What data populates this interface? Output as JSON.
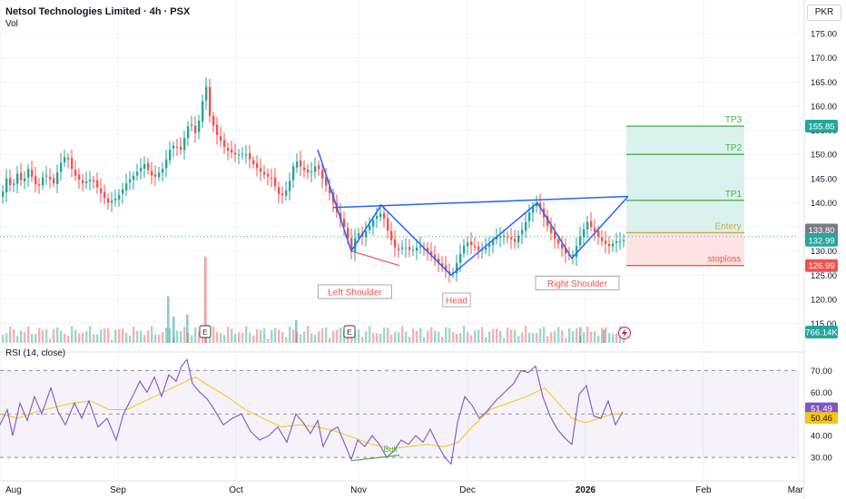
{
  "header": {
    "symbol_title": "Netsol Technologies Limited · 4h · PSX",
    "volume_label": "Vol",
    "rsi_label": "RSI (14, close)",
    "currency": "PKR"
  },
  "colors": {
    "up": "#26a69a",
    "down": "#ef5350",
    "pattern_line": "#2962ff",
    "rsi": "#7e57c2",
    "rsi_ma": "#f5c518",
    "target_zone": "#d4f0ea",
    "stop_zone": "#fde0e0",
    "target_line": "#4caf50",
    "stop_line": "#ef5350",
    "entry_line": "#c8a850"
  },
  "chart_data": [
    {
      "type": "candlestick",
      "title": "Netsol Technologies Limited · 4h · PSX",
      "x_ticks": [
        "Aug",
        "Sep",
        "Oct",
        "Nov",
        "Dec",
        "2026",
        "Feb",
        "Mar"
      ],
      "y_ticks": [
        175,
        170,
        165,
        160,
        155,
        150,
        145,
        140,
        135,
        130,
        125,
        120,
        115
      ],
      "ylim": [
        110.6,
        178.2
      ],
      "price_path": [
        [
          0,
          141
        ],
        [
          6,
          145
        ],
        [
          12,
          143
        ],
        [
          18,
          146
        ],
        [
          24,
          144
        ],
        [
          30,
          147
        ],
        [
          40,
          143
        ],
        [
          48,
          146
        ],
        [
          58,
          144
        ],
        [
          65,
          148
        ],
        [
          72,
          150
        ],
        [
          80,
          146
        ],
        [
          90,
          144
        ],
        [
          100,
          145
        ],
        [
          110,
          142
        ],
        [
          118,
          140
        ],
        [
          128,
          141
        ],
        [
          138,
          144
        ],
        [
          148,
          146
        ],
        [
          158,
          148
        ],
        [
          168,
          145
        ],
        [
          178,
          147
        ],
        [
          188,
          152
        ],
        [
          198,
          151
        ],
        [
          208,
          157
        ],
        [
          215,
          154
        ],
        [
          222,
          161
        ],
        [
          226,
          164
        ],
        [
          230,
          158
        ],
        [
          238,
          154
        ],
        [
          248,
          151
        ],
        [
          258,
          150
        ],
        [
          270,
          150
        ],
        [
          278,
          148
        ],
        [
          288,
          146
        ],
        [
          298,
          145
        ],
        [
          308,
          141
        ],
        [
          316,
          143
        ],
        [
          324,
          149
        ],
        [
          332,
          147
        ],
        [
          340,
          146
        ],
        [
          348,
          148
        ],
        [
          354,
          145
        ],
        [
          362,
          142
        ],
        [
          370,
          138
        ],
        [
          378,
          135
        ],
        [
          386,
          130
        ],
        [
          392,
          134
        ],
        [
          398,
          133
        ],
        [
          405,
          135
        ],
        [
          412,
          137
        ],
        [
          420,
          138
        ],
        [
          428,
          133
        ],
        [
          436,
          130
        ],
        [
          444,
          131
        ],
        [
          452,
          130
        ],
        [
          460,
          131
        ],
        [
          470,
          130
        ],
        [
          480,
          128
        ],
        [
          490,
          126
        ],
        [
          497,
          125
        ],
        [
          505,
          129
        ],
        [
          512,
          132
        ],
        [
          520,
          131
        ],
        [
          528,
          130
        ],
        [
          536,
          131
        ],
        [
          546,
          133
        ],
        [
          556,
          133
        ],
        [
          566,
          132
        ],
        [
          576,
          135
        ],
        [
          584,
          139
        ],
        [
          592,
          140
        ],
        [
          600,
          136
        ],
        [
          608,
          133
        ],
        [
          616,
          131
        ],
        [
          624,
          129
        ],
        [
          630,
          129
        ],
        [
          638,
          133
        ],
        [
          646,
          136
        ],
        [
          654,
          134
        ],
        [
          662,
          132
        ],
        [
          670,
          131
        ],
        [
          678,
          132
        ],
        [
          688,
          132
        ]
      ],
      "volume_spikes": [
        {
          "x": 225,
          "value_k": 1700,
          "dir": "down"
        },
        {
          "x": 184,
          "value_k": 920,
          "dir": "up"
        },
        {
          "x": 190,
          "value_k": 520,
          "dir": "up"
        },
        {
          "x": 205,
          "value_k": 560,
          "dir": "up"
        },
        {
          "x": 325,
          "value_k": 450,
          "dir": "up"
        },
        {
          "x": 638,
          "value_k": 310,
          "dir": "up"
        },
        {
          "x": 664,
          "value_k": 260,
          "dir": "up"
        }
      ],
      "pattern_points": [
        {
          "x": 350,
          "y": 151
        },
        {
          "x": 387,
          "y": 130
        },
        {
          "x": 420,
          "y": 139.5
        },
        {
          "x": 497,
          "y": 125
        },
        {
          "x": 592,
          "y": 140
        },
        {
          "x": 630,
          "y": 128.5
        },
        {
          "x": 692,
          "y": 141.3
        }
      ],
      "neckline": [
        {
          "x": 367,
          "y": 139
        },
        {
          "x": 692,
          "y": 141.3
        }
      ],
      "divergence_line": [
        {
          "x": 387,
          "y": 130
        },
        {
          "x": 440,
          "y": 127
        }
      ],
      "pattern_labels": [
        {
          "text": "Left Shoulder",
          "x": 391,
          "y": 121.5
        },
        {
          "text": "Head",
          "x": 503,
          "y": 119.8
        },
        {
          "text": "Right  Shoulder",
          "x": 636,
          "y": 123.3
        }
      ],
      "trade_levels": [
        {
          "label": "TP3",
          "value": 155.85,
          "show_tag": true
        },
        {
          "label": "TP2",
          "value": 150
        },
        {
          "label": "TP1",
          "value": 140.5
        },
        {
          "label": "Entery",
          "value": 133.8,
          "show_tag": true
        },
        {
          "label": "stoploss",
          "value": 126.99,
          "show_tag": true
        }
      ],
      "current_price": 132.99,
      "current_volume": "766.14K",
      "earnings_markers": [
        {
          "x": 226,
          "label": "E"
        },
        {
          "x": 385,
          "label": "E"
        }
      ]
    },
    {
      "type": "line",
      "title": "RSI (14, close)",
      "y_ticks": [
        70,
        60,
        50,
        40,
        30
      ],
      "ylim": [
        23.4,
        76.8
      ],
      "bands": {
        "upper": 70,
        "middle": 50,
        "lower": 30
      },
      "rsi_path": [
        [
          0,
          45
        ],
        [
          8,
          52
        ],
        [
          14,
          40
        ],
        [
          22,
          55
        ],
        [
          30,
          47
        ],
        [
          38,
          58
        ],
        [
          46,
          50
        ],
        [
          56,
          62
        ],
        [
          64,
          51
        ],
        [
          72,
          45
        ],
        [
          82,
          55
        ],
        [
          90,
          48
        ],
        [
          98,
          56
        ],
        [
          108,
          44
        ],
        [
          118,
          48
        ],
        [
          128,
          38
        ],
        [
          136,
          50
        ],
        [
          146,
          58
        ],
        [
          154,
          65
        ],
        [
          162,
          60
        ],
        [
          170,
          67
        ],
        [
          178,
          58
        ],
        [
          186,
          68
        ],
        [
          194,
          65
        ],
        [
          200,
          72
        ],
        [
          206,
          75
        ],
        [
          212,
          64
        ],
        [
          220,
          60
        ],
        [
          228,
          57
        ],
        [
          236,
          52
        ],
        [
          246,
          45
        ],
        [
          256,
          48
        ],
        [
          266,
          50
        ],
        [
          276,
          42
        ],
        [
          286,
          38
        ],
        [
          296,
          40
        ],
        [
          306,
          44
        ],
        [
          316,
          37
        ],
        [
          326,
          50
        ],
        [
          334,
          46
        ],
        [
          342,
          41
        ],
        [
          350,
          47
        ],
        [
          356,
          35
        ],
        [
          364,
          42
        ],
        [
          372,
          44
        ],
        [
          380,
          36
        ],
        [
          387,
          29
        ],
        [
          394,
          38
        ],
        [
          402,
          35
        ],
        [
          410,
          40
        ],
        [
          418,
          36
        ],
        [
          426,
          30
        ],
        [
          434,
          33
        ],
        [
          442,
          38
        ],
        [
          450,
          36
        ],
        [
          458,
          40
        ],
        [
          466,
          37
        ],
        [
          474,
          43
        ],
        [
          482,
          36
        ],
        [
          490,
          30
        ],
        [
          497,
          27
        ],
        [
          504,
          46
        ],
        [
          512,
          58
        ],
        [
          520,
          54
        ],
        [
          528,
          48
        ],
        [
          536,
          51
        ],
        [
          546,
          56
        ],
        [
          556,
          60
        ],
        [
          566,
          64
        ],
        [
          574,
          70
        ],
        [
          582,
          69
        ],
        [
          590,
          72
        ],
        [
          598,
          58
        ],
        [
          606,
          49
        ],
        [
          614,
          43
        ],
        [
          622,
          39
        ],
        [
          630,
          36
        ],
        [
          638,
          59
        ],
        [
          646,
          63
        ],
        [
          654,
          49
        ],
        [
          662,
          48
        ],
        [
          670,
          56
        ],
        [
          678,
          45
        ],
        [
          686,
          51
        ]
      ],
      "rsi_ma_path": [
        [
          0,
          50
        ],
        [
          20,
          48
        ],
        [
          40,
          51
        ],
        [
          60,
          53
        ],
        [
          80,
          55
        ],
        [
          100,
          56
        ],
        [
          120,
          52
        ],
        [
          140,
          52
        ],
        [
          160,
          56
        ],
        [
          180,
          60
        ],
        [
          200,
          64
        ],
        [
          215,
          67
        ],
        [
          230,
          63
        ],
        [
          250,
          58
        ],
        [
          270,
          52
        ],
        [
          290,
          48
        ],
        [
          310,
          44
        ],
        [
          330,
          45
        ],
        [
          350,
          44
        ],
        [
          370,
          42
        ],
        [
          390,
          39
        ],
        [
          410,
          36
        ],
        [
          430,
          34
        ],
        [
          450,
          35
        ],
        [
          470,
          36
        ],
        [
          490,
          35
        ],
        [
          505,
          37
        ],
        [
          520,
          44
        ],
        [
          540,
          52
        ],
        [
          560,
          55
        ],
        [
          580,
          58
        ],
        [
          600,
          62
        ],
        [
          615,
          55
        ],
        [
          630,
          48
        ],
        [
          645,
          46
        ],
        [
          660,
          48
        ],
        [
          675,
          50
        ],
        [
          686,
          50
        ]
      ],
      "divergence_line": [
        {
          "x": 387,
          "y": 28.5
        },
        {
          "x": 440,
          "y": 31
        }
      ],
      "bull_label": "Bull",
      "current_rsi": 51.49,
      "current_ma": 50.46
    }
  ]
}
